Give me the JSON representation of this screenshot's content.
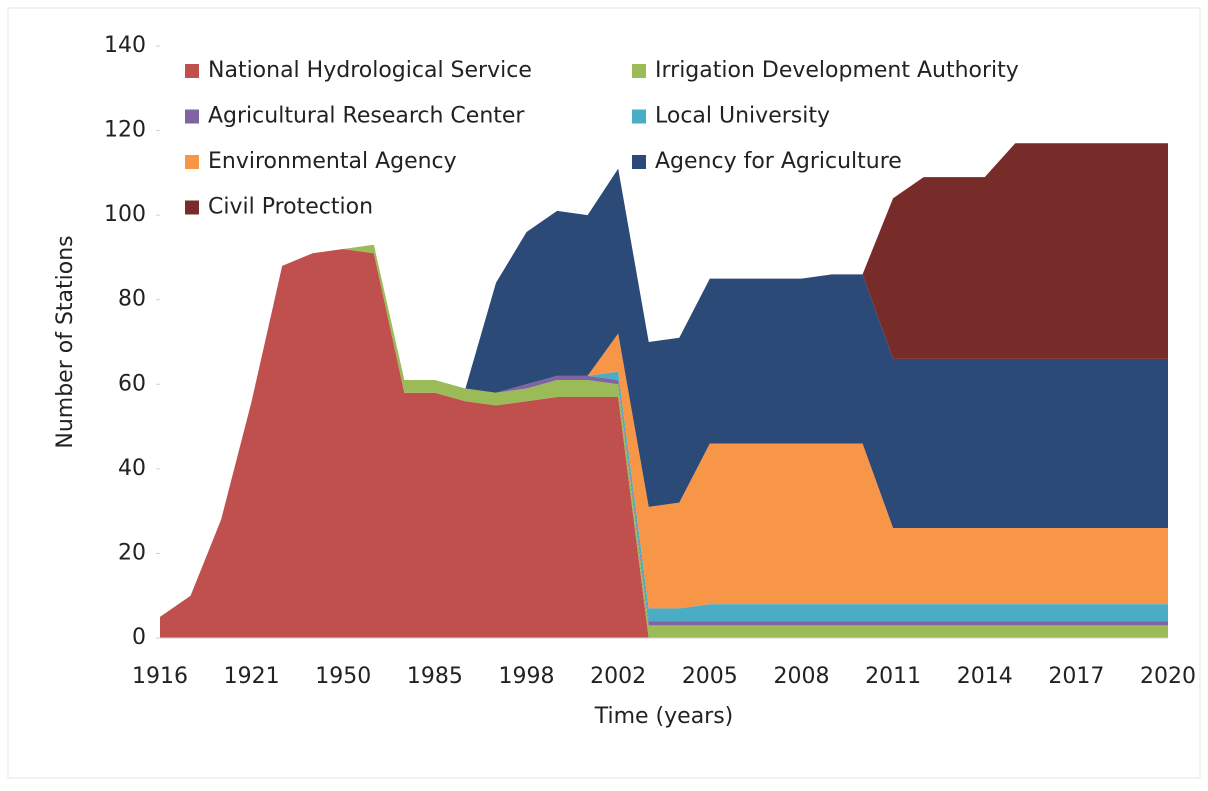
{
  "chart_data": {
    "type": "stacked_area",
    "x_label": "Time (years)",
    "y_label": "Number of Stations",
    "categories": [
      "1916",
      null,
      null,
      "1921",
      null,
      null,
      "1950",
      null,
      null,
      "1985",
      null,
      null,
      "1998",
      null,
      null,
      "2002",
      null,
      null,
      "2005",
      null,
      null,
      "2008",
      null,
      null,
      "2011",
      null,
      null,
      "2014",
      null,
      null,
      "2017",
      null,
      null,
      "2020"
    ],
    "ylim": [
      0,
      140
    ],
    "yticks": [
      0,
      20,
      40,
      60,
      80,
      100,
      120,
      140
    ],
    "legend": "top-left",
    "series": [
      {
        "name": "National Hydrological Service",
        "color": "#c0504d",
        "values": [
          5,
          10,
          28,
          56,
          88,
          91,
          92,
          91,
          58,
          58,
          56,
          55,
          56,
          57,
          57,
          57,
          0,
          0,
          0,
          0,
          0,
          0,
          0,
          0,
          0,
          0,
          0,
          0,
          0,
          0,
          0,
          0,
          0,
          0
        ]
      },
      {
        "name": "Irrigation Development Authority",
        "color": "#9bbb59",
        "values": [
          0,
          0,
          0,
          0,
          0,
          0,
          0,
          2,
          3,
          3,
          3,
          3,
          3,
          4,
          4,
          3,
          3,
          3,
          3,
          3,
          3,
          3,
          3,
          3,
          3,
          3,
          3,
          3,
          3,
          3,
          3,
          3,
          3,
          3
        ]
      },
      {
        "name": "Agricultural Research Center",
        "color": "#8064a2",
        "values": [
          0,
          0,
          0,
          0,
          0,
          0,
          0,
          0,
          0,
          0,
          0,
          0,
          1,
          1,
          1,
          1,
          1,
          1,
          1,
          1,
          1,
          1,
          1,
          1,
          1,
          1,
          1,
          1,
          1,
          1,
          1,
          1,
          1,
          1
        ]
      },
      {
        "name": "Local University",
        "color": "#4bacc6",
        "values": [
          0,
          0,
          0,
          0,
          0,
          0,
          0,
          0,
          0,
          0,
          0,
          0,
          0,
          0,
          0,
          2,
          3,
          3,
          4,
          4,
          4,
          4,
          4,
          4,
          4,
          4,
          4,
          4,
          4,
          4,
          4,
          4,
          4,
          4
        ]
      },
      {
        "name": "Environmental Agency",
        "color": "#f79646",
        "values": [
          0,
          0,
          0,
          0,
          0,
          0,
          0,
          0,
          0,
          0,
          0,
          0,
          0,
          0,
          0,
          9,
          24,
          25,
          38,
          38,
          38,
          38,
          38,
          38,
          18,
          18,
          18,
          18,
          18,
          18,
          18,
          18,
          18,
          18
        ]
      },
      {
        "name": "Agency for Agriculture",
        "color": "#2c4a77",
        "values": [
          0,
          0,
          0,
          0,
          0,
          0,
          0,
          0,
          0,
          0,
          0,
          26,
          36,
          39,
          38,
          39,
          39,
          39,
          39,
          39,
          39,
          39,
          40,
          40,
          40,
          40,
          40,
          40,
          40,
          40,
          40,
          40,
          40,
          40
        ]
      },
      {
        "name": "Civil Protection",
        "color": "#772c2a",
        "values": [
          0,
          0,
          0,
          0,
          0,
          0,
          0,
          0,
          0,
          0,
          0,
          0,
          0,
          0,
          0,
          0,
          0,
          0,
          0,
          0,
          0,
          0,
          0,
          0,
          38,
          43,
          43,
          43,
          51,
          51,
          51,
          51,
          51,
          51
        ]
      }
    ]
  }
}
